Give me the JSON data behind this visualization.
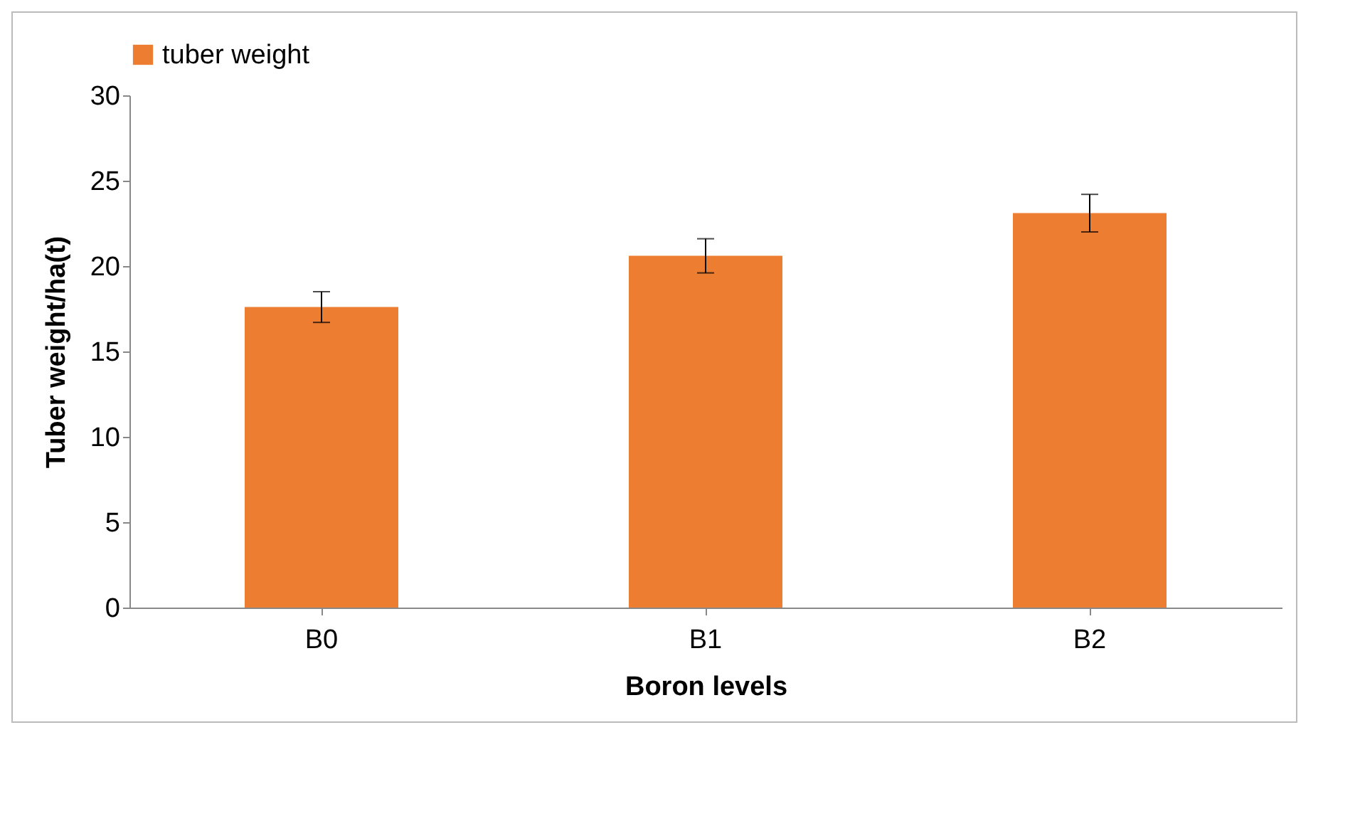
{
  "chart_data": {
    "type": "bar",
    "xlabel": "Boron levels",
    "ylabel": "Tuber weight/ha(t)",
    "categories": [
      "B0",
      "B1",
      "B2"
    ],
    "series": [
      {
        "name": "tuber weight",
        "color": "#ed7d31",
        "values": [
          17.6,
          20.6,
          23.1
        ],
        "errors": [
          0.9,
          1.0,
          1.1
        ]
      }
    ],
    "ylim": [
      0,
      30
    ],
    "yticks": [
      0,
      5,
      10,
      15,
      20,
      25,
      30
    ],
    "grid": false,
    "legend": "top"
  }
}
